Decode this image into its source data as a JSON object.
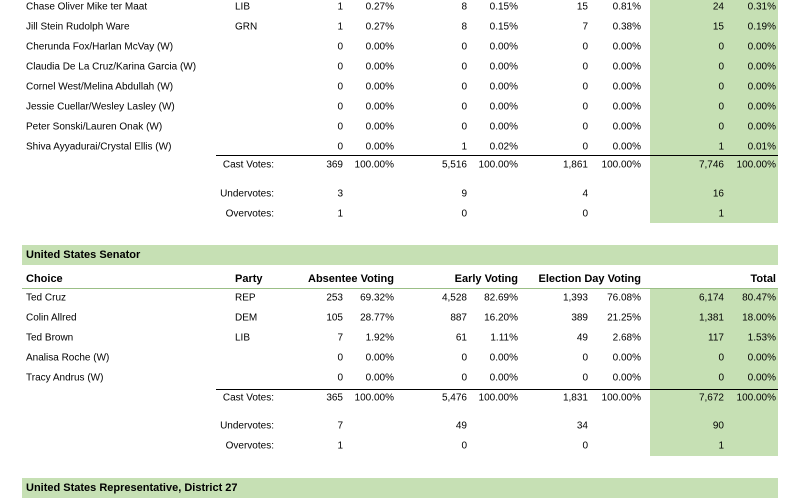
{
  "green_color": "#c6e0b4",
  "president": {
    "candidates": [
      {
        "name": "Chase Oliver Mike ter Maat",
        "party": "LIB",
        "abs": "1",
        "abs_pct": "0.27%",
        "early": "8",
        "early_pct": "0.15%",
        "ed": "15",
        "ed_pct": "0.81%",
        "total": "24",
        "total_pct": "0.31%"
      },
      {
        "name": "Jill Stein Rudolph Ware",
        "party": "GRN",
        "abs": "1",
        "abs_pct": "0.27%",
        "early": "8",
        "early_pct": "0.15%",
        "ed": "7",
        "ed_pct": "0.38%",
        "total": "15",
        "total_pct": "0.19%"
      },
      {
        "name": "Cherunda Fox/Harlan McVay (W)",
        "party": "",
        "abs": "0",
        "abs_pct": "0.00%",
        "early": "0",
        "early_pct": "0.00%",
        "ed": "0",
        "ed_pct": "0.00%",
        "total": "0",
        "total_pct": "0.00%"
      },
      {
        "name": "Claudia De La Cruz/Karina Garcia (W)",
        "party": "",
        "abs": "0",
        "abs_pct": "0.00%",
        "early": "0",
        "early_pct": "0.00%",
        "ed": "0",
        "ed_pct": "0.00%",
        "total": "0",
        "total_pct": "0.00%"
      },
      {
        "name": "Cornel West/Melina Abdullah (W)",
        "party": "",
        "abs": "0",
        "abs_pct": "0.00%",
        "early": "0",
        "early_pct": "0.00%",
        "ed": "0",
        "ed_pct": "0.00%",
        "total": "0",
        "total_pct": "0.00%"
      },
      {
        "name": "Jessie Cuellar/Wesley Lasley (W)",
        "party": "",
        "abs": "0",
        "abs_pct": "0.00%",
        "early": "0",
        "early_pct": "0.00%",
        "ed": "0",
        "ed_pct": "0.00%",
        "total": "0",
        "total_pct": "0.00%"
      },
      {
        "name": "Peter Sonski/Lauren Onak (W)",
        "party": "",
        "abs": "0",
        "abs_pct": "0.00%",
        "early": "0",
        "early_pct": "0.00%",
        "ed": "0",
        "ed_pct": "0.00%",
        "total": "0",
        "total_pct": "0.00%"
      },
      {
        "name": "Shiva Ayyadurai/Crystal Ellis (W)",
        "party": "",
        "abs": "0",
        "abs_pct": "0.00%",
        "early": "1",
        "early_pct": "0.02%",
        "ed": "0",
        "ed_pct": "0.00%",
        "total": "1",
        "total_pct": "0.01%"
      }
    ],
    "cast": {
      "label": "Cast Votes:",
      "abs": "369",
      "abs_pct": "100.00%",
      "early": "5,516",
      "early_pct": "100.00%",
      "ed": "1,861",
      "ed_pct": "100.00%",
      "total": "7,746",
      "total_pct": "100.00%"
    },
    "under": {
      "label": "Undervotes:",
      "abs": "3",
      "early": "9",
      "ed": "4",
      "total": "16"
    },
    "over": {
      "label": "Overvotes:",
      "abs": "1",
      "early": "0",
      "ed": "0",
      "total": "1"
    }
  },
  "senate": {
    "title": "United States Senator",
    "headers": {
      "choice": "Choice",
      "party": "Party",
      "absentee": "Absentee Voting",
      "early": "Early Voting",
      "election_day": "Election Day Voting",
      "total": "Total"
    },
    "candidates": [
      {
        "name": "Ted Cruz",
        "party": "REP",
        "abs": "253",
        "abs_pct": "69.32%",
        "early": "4,528",
        "early_pct": "82.69%",
        "ed": "1,393",
        "ed_pct": "76.08%",
        "total": "6,174",
        "total_pct": "80.47%"
      },
      {
        "name": "Colin Allred",
        "party": "DEM",
        "abs": "105",
        "abs_pct": "28.77%",
        "early": "887",
        "early_pct": "16.20%",
        "ed": "389",
        "ed_pct": "21.25%",
        "total": "1,381",
        "total_pct": "18.00%"
      },
      {
        "name": "Ted Brown",
        "party": "LIB",
        "abs": "7",
        "abs_pct": "1.92%",
        "early": "61",
        "early_pct": "1.11%",
        "ed": "49",
        "ed_pct": "2.68%",
        "total": "117",
        "total_pct": "1.53%"
      },
      {
        "name": "Analisa Roche (W)",
        "party": "",
        "abs": "0",
        "abs_pct": "0.00%",
        "early": "0",
        "early_pct": "0.00%",
        "ed": "0",
        "ed_pct": "0.00%",
        "total": "0",
        "total_pct": "0.00%"
      },
      {
        "name": "Tracy Andrus (W)",
        "party": "",
        "abs": "0",
        "abs_pct": "0.00%",
        "early": "0",
        "early_pct": "0.00%",
        "ed": "0",
        "ed_pct": "0.00%",
        "total": "0",
        "total_pct": "0.00%"
      }
    ],
    "cast": {
      "label": "Cast Votes:",
      "abs": "365",
      "abs_pct": "100.00%",
      "early": "5,476",
      "early_pct": "100.00%",
      "ed": "1,831",
      "ed_pct": "100.00%",
      "total": "7,672",
      "total_pct": "100.00%"
    },
    "under": {
      "label": "Undervotes:",
      "abs": "7",
      "early": "49",
      "ed": "34",
      "total": "90"
    },
    "over": {
      "label": "Overvotes:",
      "abs": "1",
      "early": "0",
      "ed": "0",
      "total": "1"
    }
  },
  "house": {
    "title": "United States Representative, District 27"
  }
}
